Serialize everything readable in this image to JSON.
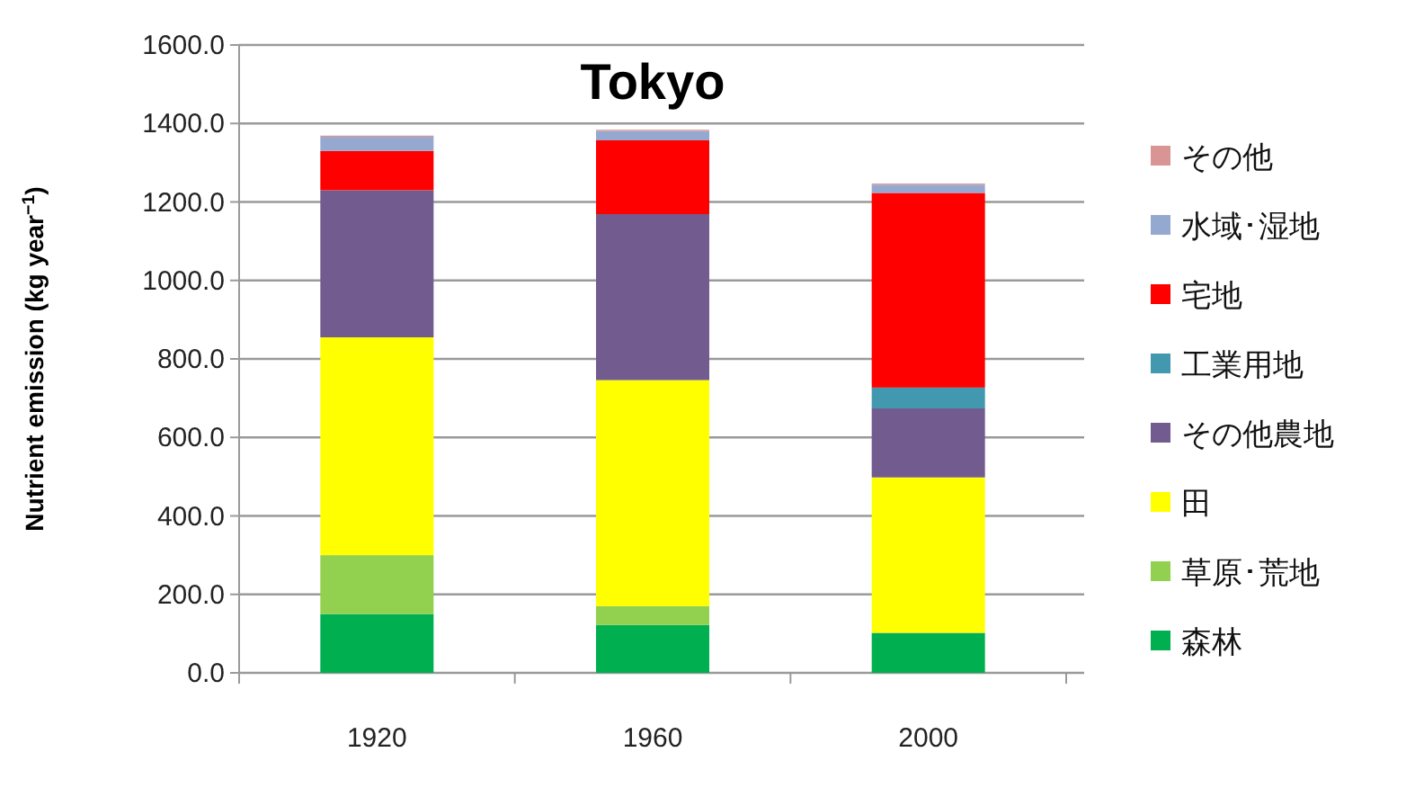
{
  "chart_data": {
    "type": "bar",
    "stacked": true,
    "title": "Tokyo",
    "ylabel": "Nutrient emission (kg year$^{−1}$)",
    "categories": [
      "1920",
      "1960",
      "2000"
    ],
    "series": [
      {
        "name": "森林",
        "color": "#00b050",
        "values": [
          150,
          122,
          102
        ]
      },
      {
        "name": "草原･荒地",
        "color": "#92d050",
        "values": [
          150,
          48,
          0
        ]
      },
      {
        "name": "田",
        "color": "#ffff00",
        "values": [
          555,
          576,
          396
        ]
      },
      {
        "name": "その他農地",
        "color": "#725b8f",
        "values": [
          375,
          423,
          176
        ]
      },
      {
        "name": "工業用地",
        "color": "#4198af",
        "values": [
          0,
          0,
          53
        ]
      },
      {
        "name": "宅地",
        "color": "#ff0000",
        "values": [
          100,
          188,
          496
        ]
      },
      {
        "name": "水域･湿地",
        "color": "#95a9d0",
        "values": [
          36,
          24,
          21
        ]
      },
      {
        "name": "その他",
        "color": "#d99594",
        "values": [
          3,
          3,
          3
        ]
      }
    ],
    "ylim": [
      0,
      1600
    ],
    "yticks": [
      {
        "value": 0,
        "label": "0.0"
      },
      {
        "value": 200,
        "label": "200.0"
      },
      {
        "value": 400,
        "label": "400.0"
      },
      {
        "value": 600,
        "label": "600.0"
      },
      {
        "value": 800,
        "label": "800.0"
      },
      {
        "value": 1000,
        "label": "1000.0"
      },
      {
        "value": 1200,
        "label": "1200.0"
      },
      {
        "value": 1400,
        "label": "1400.0"
      },
      {
        "value": 1600,
        "label": "1600.0"
      }
    ],
    "grid": "y",
    "legend": "right"
  }
}
